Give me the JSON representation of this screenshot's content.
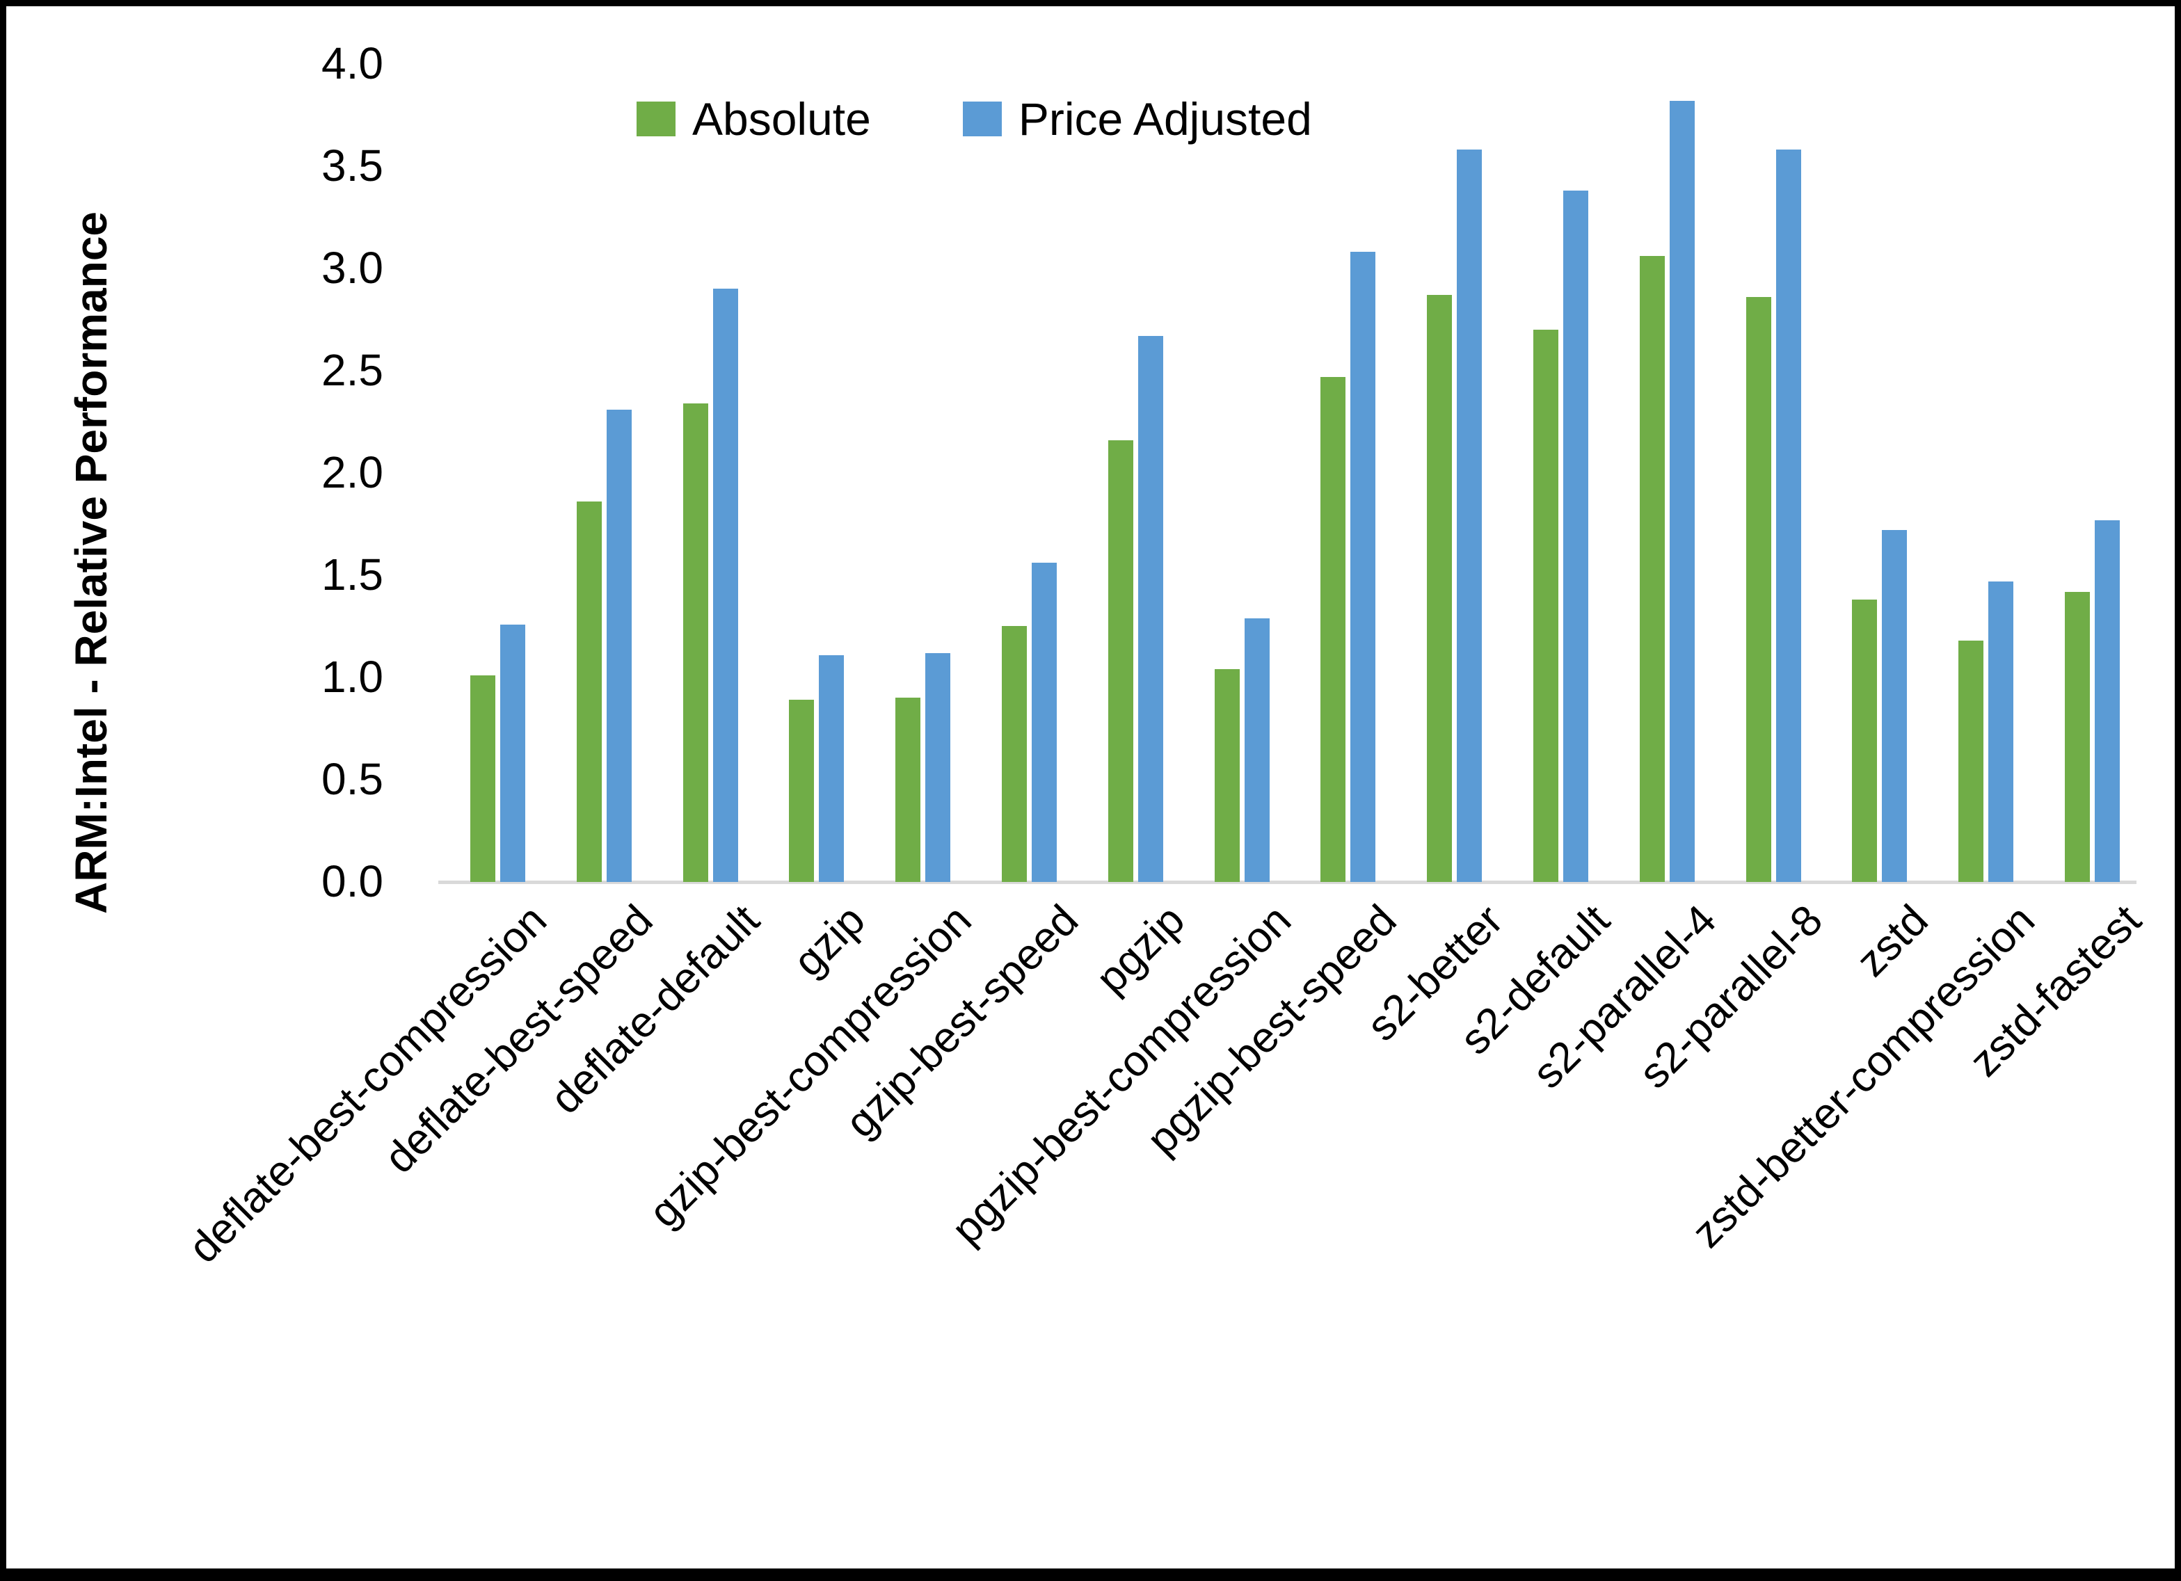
{
  "figure": {
    "background": "#ffffff",
    "frame_color": "#000000"
  },
  "chart_data": {
    "type": "bar",
    "title": "",
    "xlabel": "",
    "ylabel": "ARM:Intel - Relative Performance",
    "ylim": [
      0.0,
      4.0
    ],
    "ytick_step": 0.5,
    "yticks": [
      "0.0",
      "0.5",
      "1.0",
      "1.5",
      "2.0",
      "2.5",
      "3.0",
      "3.5",
      "4.0"
    ],
    "grid": false,
    "legend_position": "top-center",
    "axis_line_color": "#d9d9d9",
    "categories": [
      "deflate-best-compression",
      "deflate-best-speed",
      "deflate-default",
      "gzip",
      "gzip-best-compression",
      "gzip-best-speed",
      "pgzip",
      "pgzip-best-compression",
      "pgzip-best-speed",
      "s2-better",
      "s2-default",
      "s2-parallel-4",
      "s2-parallel-8",
      "zstd",
      "zstd-better-compression",
      "zstd-fastest"
    ],
    "series": [
      {
        "name": "Absolute",
        "color": "#70AD47",
        "values": [
          1.01,
          1.86,
          2.34,
          0.89,
          0.9,
          1.25,
          2.16,
          1.04,
          2.47,
          2.87,
          2.7,
          3.06,
          2.86,
          1.38,
          1.18,
          1.42
        ]
      },
      {
        "name": "Price Adjusted",
        "color": "#5B9BD5",
        "values": [
          1.26,
          2.31,
          2.9,
          1.11,
          1.12,
          1.56,
          2.67,
          1.29,
          3.08,
          3.58,
          3.38,
          3.82,
          3.58,
          1.72,
          1.47,
          1.77
        ]
      }
    ]
  }
}
